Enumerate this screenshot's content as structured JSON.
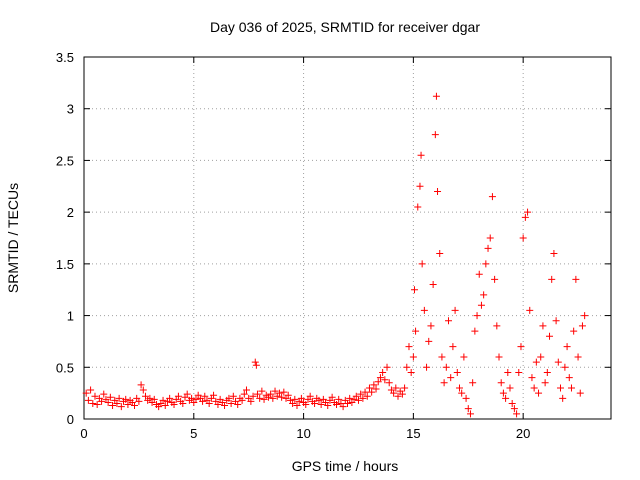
{
  "chart_data": {
    "type": "scatter",
    "title": "Day 036 of 2025, SRMTID for receiver dgar",
    "xlabel": "GPS time / hours",
    "ylabel": "SRMTID / TECUs",
    "xlim": [
      0,
      24
    ],
    "ylim": [
      0,
      3.5
    ],
    "x_ticks": [
      0,
      5,
      10,
      15,
      20
    ],
    "x_tick_labels": [
      "0",
      "5",
      "10",
      "15",
      "20"
    ],
    "y_ticks": [
      0,
      0.5,
      1,
      1.5,
      2,
      2.5,
      3,
      3.5
    ],
    "y_tick_labels": [
      "0",
      "0.5",
      "1",
      "1.5",
      "2",
      "2.5",
      "3",
      "3.5"
    ],
    "grid": true,
    "marker": "+",
    "series": [
      {
        "name": "SRMTID",
        "color": "#ff0000",
        "points": [
          [
            0.1,
            0.25
          ],
          [
            0.2,
            0.18
          ],
          [
            0.3,
            0.28
          ],
          [
            0.4,
            0.15
          ],
          [
            0.5,
            0.22
          ],
          [
            0.6,
            0.14
          ],
          [
            0.7,
            0.2
          ],
          [
            0.8,
            0.17
          ],
          [
            0.9,
            0.24
          ],
          [
            1.0,
            0.19
          ],
          [
            1.1,
            0.16
          ],
          [
            1.2,
            0.21
          ],
          [
            1.3,
            0.13
          ],
          [
            1.4,
            0.18
          ],
          [
            1.5,
            0.15
          ],
          [
            1.6,
            0.2
          ],
          [
            1.7,
            0.12
          ],
          [
            1.8,
            0.17
          ],
          [
            1.9,
            0.19
          ],
          [
            2.0,
            0.14
          ],
          [
            2.1,
            0.18
          ],
          [
            2.2,
            0.16
          ],
          [
            2.3,
            0.13
          ],
          [
            2.4,
            0.2
          ],
          [
            2.5,
            0.17
          ],
          [
            2.6,
            0.33
          ],
          [
            2.7,
            0.28
          ],
          [
            2.8,
            0.22
          ],
          [
            2.9,
            0.18
          ],
          [
            3.0,
            0.2
          ],
          [
            3.1,
            0.16
          ],
          [
            3.2,
            0.19
          ],
          [
            3.3,
            0.14
          ],
          [
            3.4,
            0.12
          ],
          [
            3.5,
            0.15
          ],
          [
            3.6,
            0.18
          ],
          [
            3.7,
            0.13
          ],
          [
            3.8,
            0.17
          ],
          [
            3.9,
            0.2
          ],
          [
            4.0,
            0.16
          ],
          [
            4.1,
            0.14
          ],
          [
            4.2,
            0.19
          ],
          [
            4.3,
            0.22
          ],
          [
            4.4,
            0.17
          ],
          [
            4.5,
            0.15
          ],
          [
            4.6,
            0.21
          ],
          [
            4.7,
            0.24
          ],
          [
            4.8,
            0.18
          ],
          [
            4.9,
            0.2
          ],
          [
            5.0,
            0.16
          ],
          [
            5.1,
            0.19
          ],
          [
            5.2,
            0.23
          ],
          [
            5.3,
            0.2
          ],
          [
            5.4,
            0.17
          ],
          [
            5.5,
            0.22
          ],
          [
            5.6,
            0.18
          ],
          [
            5.7,
            0.15
          ],
          [
            5.8,
            0.2
          ],
          [
            5.9,
            0.23
          ],
          [
            6.0,
            0.17
          ],
          [
            6.1,
            0.14
          ],
          [
            6.2,
            0.19
          ],
          [
            6.3,
            0.16
          ],
          [
            6.4,
            0.13
          ],
          [
            6.5,
            0.18
          ],
          [
            6.6,
            0.2
          ],
          [
            6.7,
            0.15
          ],
          [
            6.8,
            0.22
          ],
          [
            6.9,
            0.17
          ],
          [
            7.0,
            0.14
          ],
          [
            7.1,
            0.2
          ],
          [
            7.2,
            0.18
          ],
          [
            7.3,
            0.24
          ],
          [
            7.4,
            0.28
          ],
          [
            7.5,
            0.2
          ],
          [
            7.6,
            0.17
          ],
          [
            7.7,
            0.22
          ],
          [
            7.8,
            0.55
          ],
          [
            7.85,
            0.52
          ],
          [
            7.9,
            0.24
          ],
          [
            8.0,
            0.2
          ],
          [
            8.1,
            0.27
          ],
          [
            8.2,
            0.19
          ],
          [
            8.3,
            0.23
          ],
          [
            8.4,
            0.21
          ],
          [
            8.5,
            0.24
          ],
          [
            8.6,
            0.2
          ],
          [
            8.7,
            0.27
          ],
          [
            8.8,
            0.22
          ],
          [
            8.9,
            0.25
          ],
          [
            9.0,
            0.21
          ],
          [
            9.1,
            0.26
          ],
          [
            9.2,
            0.2
          ],
          [
            9.3,
            0.23
          ],
          [
            9.4,
            0.18
          ],
          [
            9.5,
            0.15
          ],
          [
            9.6,
            0.19
          ],
          [
            9.7,
            0.13
          ],
          [
            9.8,
            0.17
          ],
          [
            9.9,
            0.2
          ],
          [
            10.0,
            0.16
          ],
          [
            10.1,
            0.14
          ],
          [
            10.2,
            0.19
          ],
          [
            10.3,
            0.22
          ],
          [
            10.4,
            0.17
          ],
          [
            10.5,
            0.15
          ],
          [
            10.6,
            0.2
          ],
          [
            10.7,
            0.18
          ],
          [
            10.8,
            0.14
          ],
          [
            10.9,
            0.19
          ],
          [
            11.0,
            0.16
          ],
          [
            11.1,
            0.13
          ],
          [
            11.2,
            0.18
          ],
          [
            11.3,
            0.21
          ],
          [
            11.4,
            0.16
          ],
          [
            11.5,
            0.14
          ],
          [
            11.6,
            0.19
          ],
          [
            11.7,
            0.15
          ],
          [
            11.8,
            0.12
          ],
          [
            11.9,
            0.18
          ],
          [
            12.0,
            0.15
          ],
          [
            12.1,
            0.2
          ],
          [
            12.2,
            0.16
          ],
          [
            12.3,
            0.19
          ],
          [
            12.4,
            0.22
          ],
          [
            12.5,
            0.18
          ],
          [
            12.6,
            0.24
          ],
          [
            12.7,
            0.2
          ],
          [
            12.8,
            0.26
          ],
          [
            12.9,
            0.22
          ],
          [
            13.0,
            0.3
          ],
          [
            13.1,
            0.26
          ],
          [
            13.2,
            0.33
          ],
          [
            13.3,
            0.29
          ],
          [
            13.4,
            0.36
          ],
          [
            13.5,
            0.4
          ],
          [
            13.6,
            0.45
          ],
          [
            13.7,
            0.38
          ],
          [
            13.8,
            0.5
          ],
          [
            13.9,
            0.35
          ],
          [
            14.0,
            0.28
          ],
          [
            14.1,
            0.25
          ],
          [
            14.2,
            0.3
          ],
          [
            14.3,
            0.22
          ],
          [
            14.4,
            0.27
          ],
          [
            14.5,
            0.24
          ],
          [
            14.6,
            0.3
          ],
          [
            14.7,
            0.5
          ],
          [
            14.8,
            0.7
          ],
          [
            14.9,
            0.45
          ],
          [
            15.0,
            0.6
          ],
          [
            15.05,
            1.25
          ],
          [
            15.1,
            0.85
          ],
          [
            15.2,
            2.05
          ],
          [
            15.3,
            2.25
          ],
          [
            15.35,
            2.55
          ],
          [
            15.4,
            1.5
          ],
          [
            15.5,
            1.05
          ],
          [
            15.6,
            0.5
          ],
          [
            15.7,
            0.75
          ],
          [
            15.8,
            0.9
          ],
          [
            15.9,
            1.3
          ],
          [
            16.0,
            2.75
          ],
          [
            16.05,
            3.12
          ],
          [
            16.1,
            2.2
          ],
          [
            16.2,
            1.6
          ],
          [
            16.3,
            0.6
          ],
          [
            16.4,
            0.35
          ],
          [
            16.5,
            0.5
          ],
          [
            16.6,
            0.95
          ],
          [
            16.7,
            0.4
          ],
          [
            16.8,
            0.7
          ],
          [
            16.9,
            1.05
          ],
          [
            17.0,
            0.45
          ],
          [
            17.1,
            0.3
          ],
          [
            17.2,
            0.25
          ],
          [
            17.3,
            0.6
          ],
          [
            17.4,
            0.2
          ],
          [
            17.5,
            0.1
          ],
          [
            17.6,
            0.05
          ],
          [
            17.7,
            0.35
          ],
          [
            17.8,
            0.85
          ],
          [
            17.9,
            1.0
          ],
          [
            18.0,
            1.4
          ],
          [
            18.1,
            1.1
          ],
          [
            18.2,
            1.2
          ],
          [
            18.3,
            1.5
          ],
          [
            18.4,
            1.65
          ],
          [
            18.5,
            1.75
          ],
          [
            18.6,
            2.15
          ],
          [
            18.7,
            1.35
          ],
          [
            18.8,
            0.9
          ],
          [
            18.9,
            0.6
          ],
          [
            19.0,
            0.35
          ],
          [
            19.1,
            0.25
          ],
          [
            19.2,
            0.2
          ],
          [
            19.3,
            0.45
          ],
          [
            19.4,
            0.3
          ],
          [
            19.5,
            0.15
          ],
          [
            19.6,
            0.1
          ],
          [
            19.7,
            0.05
          ],
          [
            19.8,
            0.45
          ],
          [
            19.9,
            0.7
          ],
          [
            20.0,
            1.75
          ],
          [
            20.1,
            1.95
          ],
          [
            20.2,
            2.0
          ],
          [
            20.3,
            1.05
          ],
          [
            20.4,
            0.4
          ],
          [
            20.5,
            0.3
          ],
          [
            20.6,
            0.55
          ],
          [
            20.7,
            0.25
          ],
          [
            20.8,
            0.6
          ],
          [
            20.9,
            0.9
          ],
          [
            21.0,
            0.35
          ],
          [
            21.1,
            0.45
          ],
          [
            21.2,
            0.8
          ],
          [
            21.3,
            1.35
          ],
          [
            21.4,
            1.6
          ],
          [
            21.5,
            0.95
          ],
          [
            21.6,
            0.55
          ],
          [
            21.7,
            0.3
          ],
          [
            21.8,
            0.2
          ],
          [
            21.9,
            0.5
          ],
          [
            22.0,
            0.7
          ],
          [
            22.1,
            0.4
          ],
          [
            22.2,
            0.3
          ],
          [
            22.3,
            0.85
          ],
          [
            22.4,
            1.35
          ],
          [
            22.5,
            0.6
          ],
          [
            22.6,
            0.25
          ],
          [
            22.7,
            0.9
          ],
          [
            22.8,
            1.0
          ]
        ]
      }
    ]
  }
}
